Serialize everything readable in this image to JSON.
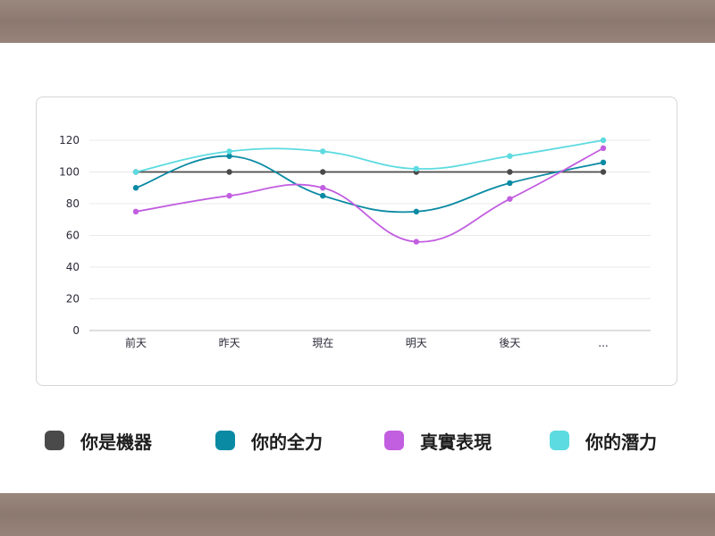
{
  "chart_data": {
    "type": "line",
    "categories": [
      "前天",
      "昨天",
      "現在",
      "明天",
      "後天",
      "..."
    ],
    "ylim": [
      0,
      120
    ],
    "yticks": [
      0,
      20,
      40,
      60,
      80,
      100,
      120
    ],
    "grid": true,
    "legend_position": "bottom",
    "series": [
      {
        "name": "你是機器",
        "color": "#4a4a4a",
        "values": [
          100,
          100,
          100,
          100,
          100,
          100
        ]
      },
      {
        "name": "你的全力",
        "color": "#0b8aa3",
        "values": [
          90,
          110,
          85,
          75,
          93,
          106
        ]
      },
      {
        "name": "真實表現",
        "color": "#c25ee0",
        "values": [
          75,
          85,
          90,
          56,
          83,
          115
        ]
      },
      {
        "name": "你的潛力",
        "color": "#5cdbe0",
        "values": [
          100,
          113,
          113,
          102,
          110,
          120
        ]
      }
    ]
  }
}
